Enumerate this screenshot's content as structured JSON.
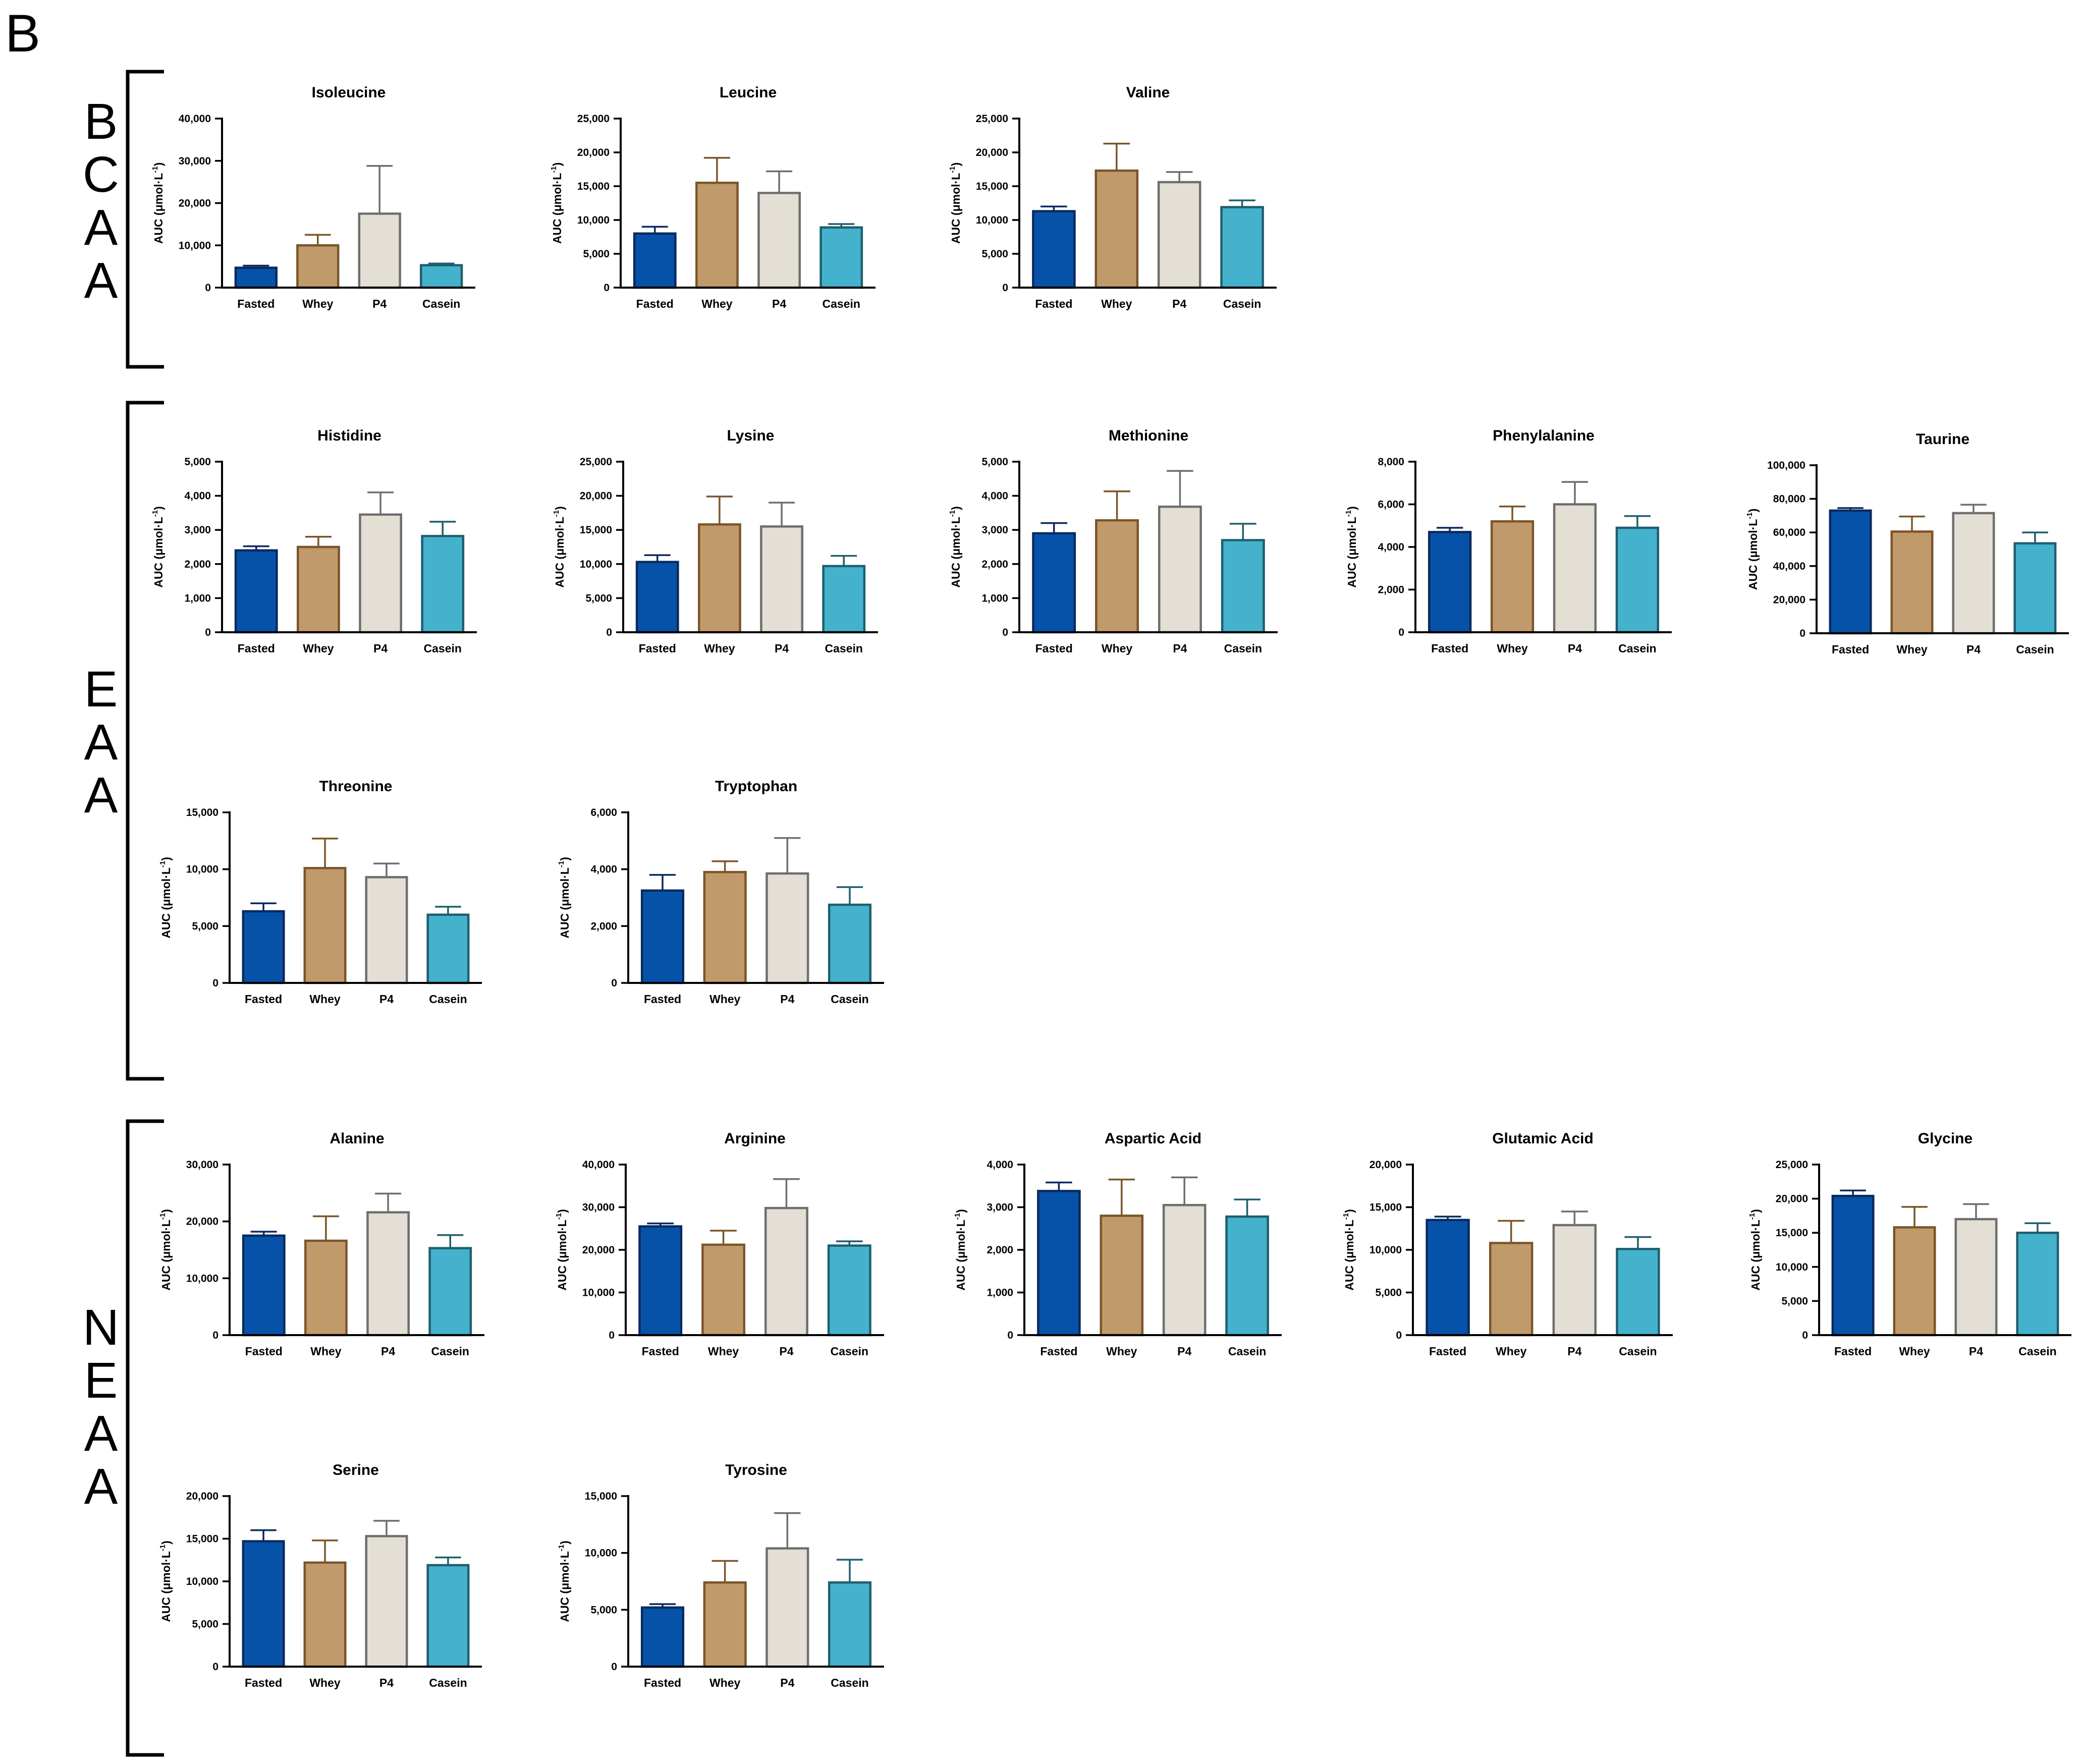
{
  "panel_label": "B",
  "groups": [
    {
      "name": "BCAA",
      "letters": [
        "B",
        "C",
        "A",
        "A"
      ]
    },
    {
      "name": "EAA",
      "letters": [
        "E",
        "A",
        "A"
      ]
    },
    {
      "name": "NEAA",
      "letters": [
        "N",
        "E",
        "A",
        "A"
      ]
    }
  ],
  "colors": {
    "Fasted": {
      "fill": "#0652A8",
      "stroke": "#0A2A5E"
    },
    "Whey": {
      "fill": "#C19A6B",
      "stroke": "#7A5528"
    },
    "P4": {
      "fill": "#E4DFD4",
      "stroke": "#6E6E6E"
    },
    "Casein": {
      "fill": "#44B2CC",
      "stroke": "#1F5E6E"
    }
  },
  "y_axis_label": "AUC (μmol·L",
  "y_axis_label_sup": "-1",
  "y_axis_label_close": ")",
  "chart_data": [
    {
      "type": "bar",
      "group": "BCAA",
      "title": "Isoleucine",
      "categories": [
        "Fasted",
        "Whey",
        "P4",
        "Casein"
      ],
      "values": [
        4700,
        10000,
        17500,
        5300
      ],
      "errors": [
        500,
        2500,
        11300,
        400
      ],
      "ylim": [
        0,
        40000
      ],
      "ticks": [
        "0",
        "10,000",
        "20,000",
        "30,000",
        "40,000"
      ],
      "ylabel": "AUC (μmol·L-1)"
    },
    {
      "type": "bar",
      "group": "BCAA",
      "title": "Leucine",
      "categories": [
        "Fasted",
        "Whey",
        "P4",
        "Casein"
      ],
      "values": [
        8000,
        15500,
        14000,
        8900
      ],
      "errors": [
        1000,
        3700,
        3200,
        500
      ],
      "ylim": [
        0,
        25000
      ],
      "ticks": [
        "0",
        "5,000",
        "10,000",
        "15,000",
        "20,000",
        "25,000"
      ],
      "ylabel": "AUC (μmol·L-1)"
    },
    {
      "type": "bar",
      "group": "BCAA",
      "title": "Valine",
      "categories": [
        "Fasted",
        "Whey",
        "P4",
        "Casein"
      ],
      "values": [
        11300,
        17300,
        15600,
        11900
      ],
      "errors": [
        700,
        4000,
        1500,
        1000
      ],
      "ylim": [
        0,
        25000
      ],
      "ticks": [
        "0",
        "5,000",
        "10,000",
        "15,000",
        "20,000",
        "25,000"
      ],
      "ylabel": "AUC (μmol·L-1)"
    },
    {
      "type": "bar",
      "group": "EAA",
      "title": "Histidine",
      "categories": [
        "Fasted",
        "Whey",
        "P4",
        "Casein"
      ],
      "values": [
        2400,
        2500,
        3450,
        2820
      ],
      "errors": [
        120,
        300,
        650,
        420
      ],
      "ylim": [
        0,
        5000
      ],
      "ticks": [
        "0",
        "1,000",
        "2,000",
        "3,000",
        "4,000",
        "5,000"
      ],
      "ylabel": "AUC (μmol·L-1)"
    },
    {
      "type": "bar",
      "group": "EAA",
      "title": "Lysine",
      "categories": [
        "Fasted",
        "Whey",
        "P4",
        "Casein"
      ],
      "values": [
        10300,
        15800,
        15500,
        9700
      ],
      "errors": [
        1000,
        4100,
        3500,
        1500
      ],
      "ylim": [
        0,
        25000
      ],
      "ticks": [
        "0",
        "5,000",
        "10,000",
        "15,000",
        "20,000",
        "25,000"
      ],
      "ylabel": "AUC (μmol·L-1)"
    },
    {
      "type": "bar",
      "group": "EAA",
      "title": "Methionine",
      "categories": [
        "Fasted",
        "Whey",
        "P4",
        "Casein"
      ],
      "values": [
        2900,
        3280,
        3680,
        2700
      ],
      "errors": [
        300,
        850,
        1050,
        480
      ],
      "ylim": [
        0,
        5000
      ],
      "ticks": [
        "0",
        "1,000",
        "2,000",
        "3,000",
        "4,000",
        "5,000"
      ],
      "ylabel": "AUC (μmol·L-1)"
    },
    {
      "type": "bar",
      "group": "EAA",
      "title": "Phenylalanine",
      "categories": [
        "Fasted",
        "Whey",
        "P4",
        "Casein"
      ],
      "values": [
        4700,
        5200,
        6000,
        4900
      ],
      "errors": [
        200,
        700,
        1050,
        550
      ],
      "ylim": [
        0,
        8000
      ],
      "ticks": [
        "0",
        "2,000",
        "4,000",
        "6,000",
        "8,000"
      ],
      "ylabel": "AUC (μmol·L-1)"
    },
    {
      "type": "bar",
      "group": "EAA",
      "title": "Taurine",
      "categories": [
        "Fasted",
        "Whey",
        "P4",
        "Casein"
      ],
      "values": [
        73000,
        60500,
        71500,
        53500
      ],
      "errors": [
        1500,
        9000,
        5000,
        6500
      ],
      "ylim": [
        0,
        100000
      ],
      "ticks": [
        "0",
        "20,000",
        "40,000",
        "60,000",
        "80,000",
        "100,000"
      ],
      "ylabel": "AUC (μmol·L-1)"
    },
    {
      "type": "bar",
      "group": "EAA",
      "title": "Threonine",
      "categories": [
        "Fasted",
        "Whey",
        "P4",
        "Casein"
      ],
      "values": [
        6300,
        10100,
        9300,
        6000
      ],
      "errors": [
        700,
        2600,
        1200,
        700
      ],
      "ylim": [
        0,
        15000
      ],
      "ticks": [
        "0",
        "5,000",
        "10,000",
        "15,000"
      ],
      "ylabel": "AUC (μmol·L-1)"
    },
    {
      "type": "bar",
      "group": "EAA",
      "title": "Tryptophan",
      "categories": [
        "Fasted",
        "Whey",
        "P4",
        "Casein"
      ],
      "values": [
        3250,
        3900,
        3850,
        2750
      ],
      "errors": [
        550,
        380,
        1250,
        620
      ],
      "ylim": [
        0,
        6000
      ],
      "ticks": [
        "0",
        "2,000",
        "4,000",
        "6,000"
      ],
      "ylabel": "AUC (μmol·L-1)"
    },
    {
      "type": "bar",
      "group": "NEAA",
      "title": "Alanine",
      "categories": [
        "Fasted",
        "Whey",
        "P4",
        "Casein"
      ],
      "values": [
        17500,
        16600,
        21600,
        15300
      ],
      "errors": [
        700,
        4300,
        3300,
        2300
      ],
      "ylim": [
        0,
        30000
      ],
      "ticks": [
        "0",
        "10,000",
        "20,000",
        "30,000"
      ],
      "ylabel": "AUC (μmol·L-1)"
    },
    {
      "type": "bar",
      "group": "NEAA",
      "title": "Arginine",
      "categories": [
        "Fasted",
        "Whey",
        "P4",
        "Casein"
      ],
      "values": [
        25500,
        21200,
        29800,
        21000
      ],
      "errors": [
        700,
        3300,
        6800,
        1000
      ],
      "ylim": [
        0,
        40000
      ],
      "ticks": [
        "0",
        "10,000",
        "20,000",
        "30,000",
        "40,000"
      ],
      "ylabel": "AUC (μmol·L-1)"
    },
    {
      "type": "bar",
      "group": "NEAA",
      "title": "Aspartic Acid",
      "categories": [
        "Fasted",
        "Whey",
        "P4",
        "Casein"
      ],
      "values": [
        3380,
        2800,
        3050,
        2780
      ],
      "errors": [
        200,
        850,
        650,
        400
      ],
      "ylim": [
        0,
        4000
      ],
      "ticks": [
        "0",
        "1,000",
        "2,000",
        "3,000",
        "4,000"
      ],
      "ylabel": "AUC (μmol·L-1)"
    },
    {
      "type": "bar",
      "group": "NEAA",
      "title": "Glutamic Acid",
      "categories": [
        "Fasted",
        "Whey",
        "P4",
        "Casein"
      ],
      "values": [
        13500,
        10800,
        12900,
        10100
      ],
      "errors": [
        400,
        2600,
        1600,
        1400
      ],
      "ylim": [
        0,
        20000
      ],
      "ticks": [
        "0",
        "5,000",
        "10,000",
        "15,000",
        "20,000"
      ],
      "ylabel": "AUC (μmol·L-1)"
    },
    {
      "type": "bar",
      "group": "NEAA",
      "title": "Glycine",
      "categories": [
        "Fasted",
        "Whey",
        "P4",
        "Casein"
      ],
      "values": [
        20400,
        15800,
        17000,
        15000
      ],
      "errors": [
        800,
        3000,
        2200,
        1400
      ],
      "ylim": [
        0,
        25000
      ],
      "ticks": [
        "0",
        "5,000",
        "10,000",
        "15,000",
        "20,000",
        "25,000"
      ],
      "ylabel": "AUC (μmol·L-1)"
    },
    {
      "type": "bar",
      "group": "NEAA",
      "title": "Serine",
      "categories": [
        "Fasted",
        "Whey",
        "P4",
        "Casein"
      ],
      "values": [
        14700,
        12200,
        15300,
        11900
      ],
      "errors": [
        1300,
        2600,
        1800,
        900
      ],
      "ylim": [
        0,
        20000
      ],
      "ticks": [
        "0",
        "5,000",
        "10,000",
        "15,000",
        "20,000"
      ],
      "ylabel": "AUC (μmol·L-1)"
    },
    {
      "type": "bar",
      "group": "NEAA",
      "title": "Tyrosine",
      "categories": [
        "Fasted",
        "Whey",
        "P4",
        "Casein"
      ],
      "values": [
        5200,
        7400,
        10400,
        7400
      ],
      "errors": [
        300,
        1900,
        3100,
        2000
      ],
      "ylim": [
        0,
        15000
      ],
      "ticks": [
        "0",
        "5,000",
        "10,000",
        "15,000"
      ],
      "ylabel": "AUC (μmol·L-1)"
    }
  ]
}
